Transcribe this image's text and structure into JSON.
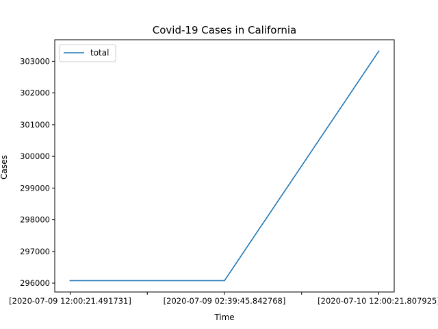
{
  "chart_data": {
    "type": "line",
    "title": "Covid-19 Cases in California",
    "xlabel": "Time",
    "ylabel": "Cases",
    "categories": [
      "[2020-07-09 12:00:21.491731]",
      "[2020-07-09 02:39:45.842768]",
      "[2020-07-10 12:00:21.807925]"
    ],
    "x_tick_labels": [
      "[2020-07-09 12:00:21.491731]",
      "[2020-07-09 02:39:45.842768]",
      "[2020-07-10 12:00:21.807925]"
    ],
    "series": [
      {
        "name": "total",
        "values": [
          296080,
          296080,
          303320
        ],
        "color": "#1f77b4"
      }
    ],
    "ylim": [
      295720,
      303680
    ],
    "y_ticks": [
      296000,
      297000,
      298000,
      299000,
      300000,
      301000,
      302000,
      303000
    ],
    "y_tick_labels": [
      "296000",
      "297000",
      "298000",
      "299000",
      "300000",
      "301000",
      "302000",
      "303000"
    ],
    "grid": false,
    "legend": {
      "position": "top-left",
      "entries": [
        "total"
      ]
    }
  }
}
